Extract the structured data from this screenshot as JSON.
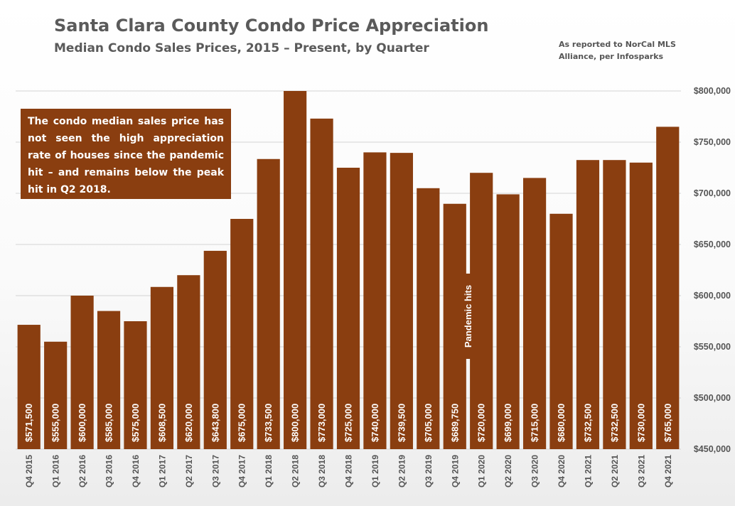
{
  "chart_data": {
    "type": "bar",
    "title": "Santa Clara County Condo Price Appreciation",
    "subtitle": "Median Condo Sales Prices, 2015 – Present, by Quarter",
    "source": "As reported to NorCal MLS Alliance, per Infosparks",
    "callout": "The condo median sales price has not seen the high appreciation rate of houses since the pandemic hit – and remains below the peak hit in Q2 2018.",
    "annotation": "Pandemic hits",
    "annotation_after_category": "Q4 2019",
    "categories": [
      "Q4 2015",
      "Q1 2016",
      "Q2 2016",
      "Q3 2016",
      "Q4 2016",
      "Q1 2017",
      "Q2 2017",
      "Q3 2017",
      "Q4 2017",
      "Q1 2018",
      "Q2 2018",
      "Q3 2018",
      "Q4 2018",
      "Q1 2019",
      "Q2 2019",
      "Q3 2019",
      "Q4 2019",
      "Q1 2020",
      "Q2 2020",
      "Q3 2020",
      "Q4 2020",
      "Q1 2021",
      "Q2 2021",
      "Q3 2021",
      "Q4 2021"
    ],
    "values": [
      571500,
      555000,
      600000,
      585000,
      575000,
      608500,
      620000,
      643800,
      675000,
      733500,
      800000,
      773000,
      725000,
      740000,
      739500,
      705000,
      689750,
      720000,
      699000,
      715000,
      680000,
      732500,
      732500,
      730000,
      765000
    ],
    "value_labels": [
      "$571,500",
      "$555,000",
      "$600,000",
      "$585,000",
      "$575,000",
      "$608,500",
      "$620,000",
      "$643,800",
      "$675,000",
      "$733,500",
      "$800,000",
      "$773,000",
      "$725,000",
      "$740,000",
      "$739,500",
      "$705,000",
      "$689,750",
      "$720,000",
      "$699,000",
      "$715,000",
      "$680,000",
      "$732,500",
      "$732,500",
      "$730,000",
      "$765,000"
    ],
    "ylim": [
      450000,
      800000
    ],
    "yticks": [
      450000,
      500000,
      550000,
      600000,
      650000,
      700000,
      750000,
      800000
    ],
    "ytick_labels": [
      "$450,000",
      "$500,000",
      "$550,000",
      "$600,000",
      "$650,000",
      "$700,000",
      "$750,000",
      "$800,000"
    ],
    "grid": true,
    "colors": {
      "bar": "#8a3e10",
      "grid": "#d4d4d4",
      "text": "#555555"
    }
  }
}
